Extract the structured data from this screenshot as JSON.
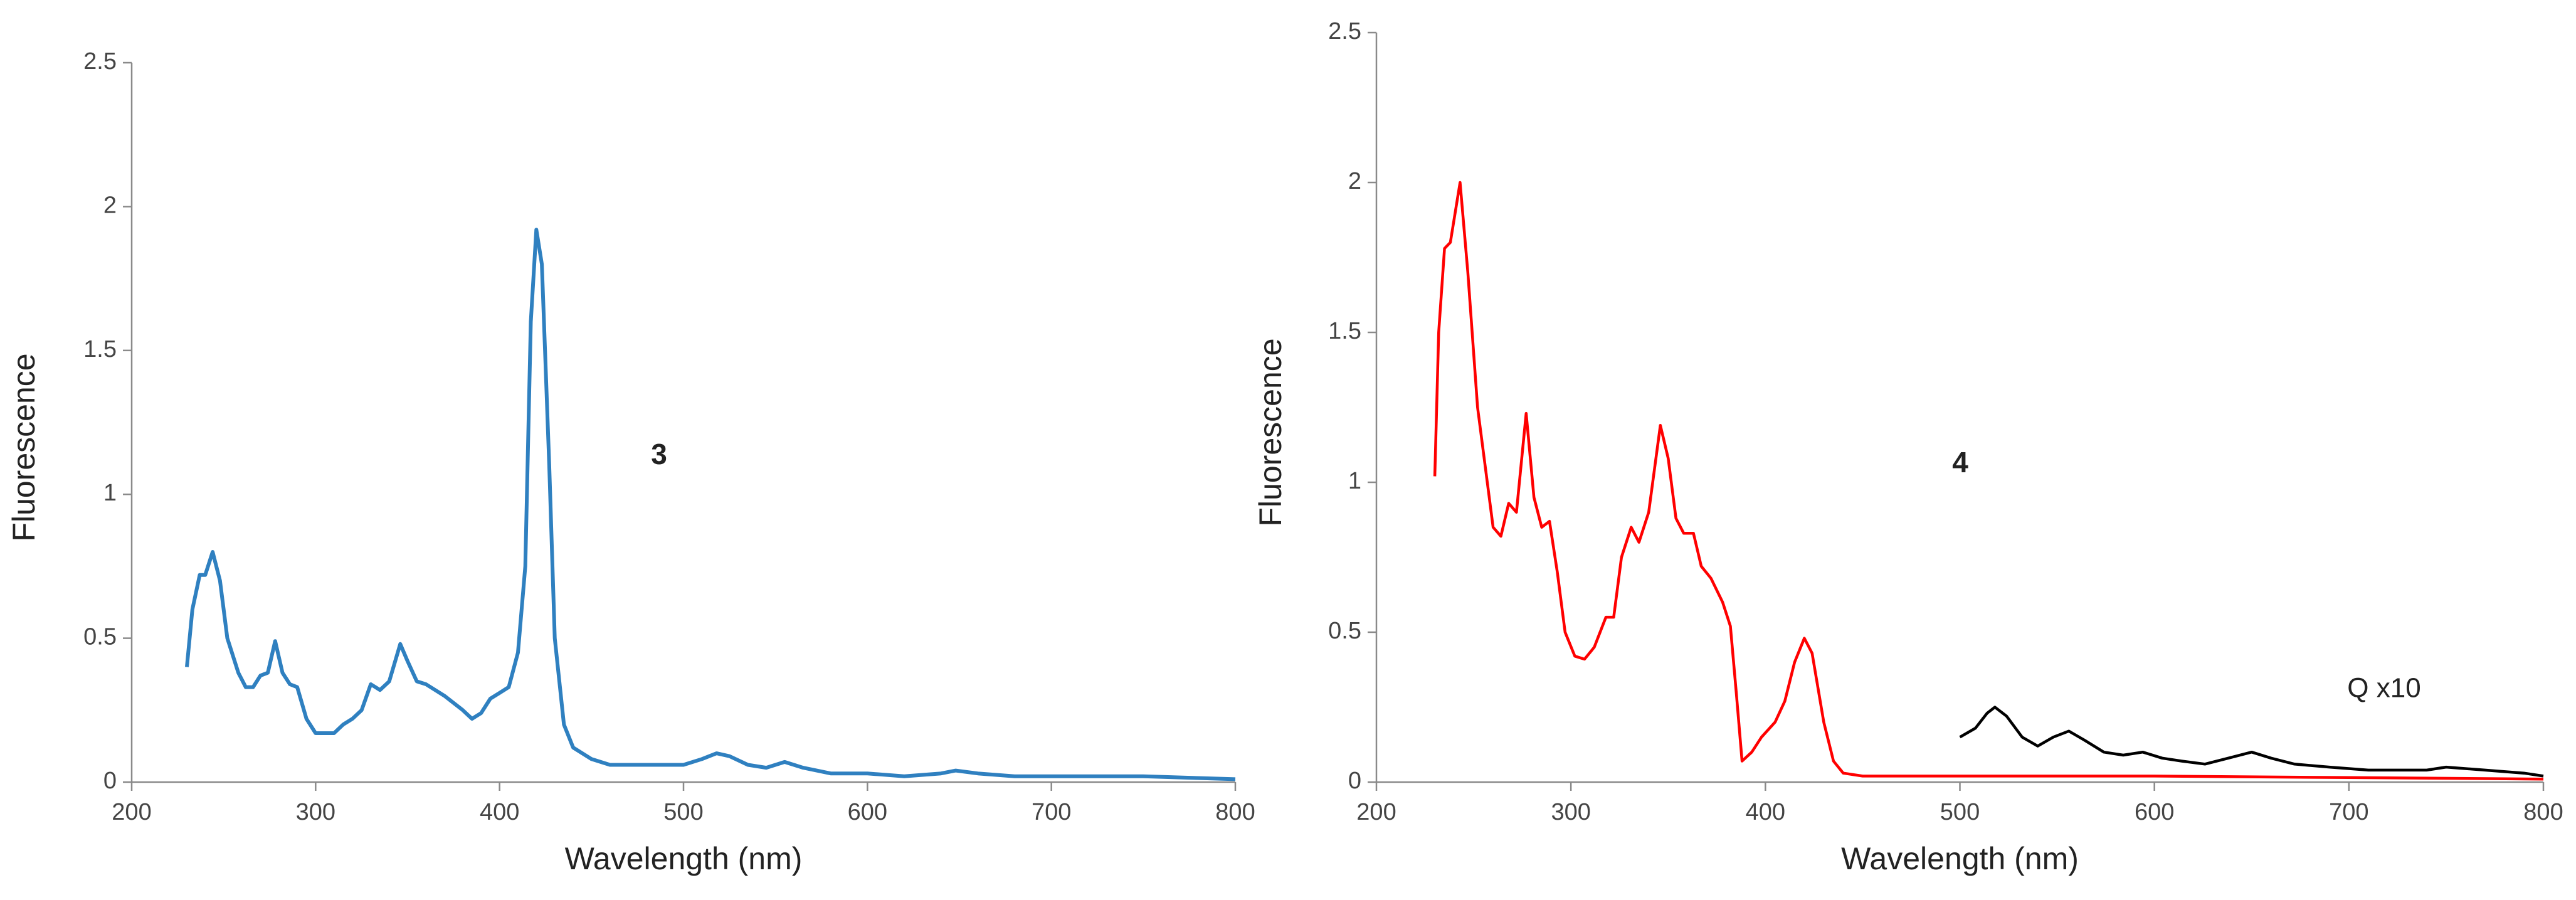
{
  "chart_data": [
    {
      "type": "line",
      "xlabel": "Wavelength (nm)",
      "ylabel": "Fluorescence",
      "xlim": [
        200,
        800
      ],
      "xticks": [
        200,
        300,
        400,
        500,
        600,
        700,
        800
      ],
      "ylim": [
        0,
        2.5
      ],
      "yticks": [
        0,
        0.5,
        1,
        1.5,
        2,
        2.5
      ],
      "grid": false,
      "annotations": [
        "3"
      ],
      "series": [
        {
          "color": "#2f80c0",
          "x": [
            230,
            233,
            237,
            240,
            244,
            248,
            252,
            258,
            262,
            266,
            270,
            274,
            278,
            282,
            286,
            290,
            295,
            300,
            305,
            310,
            315,
            320,
            325,
            330,
            335,
            340,
            346,
            350,
            355,
            360,
            370,
            380,
            385,
            390,
            395,
            400,
            405,
            410,
            414,
            417,
            420,
            423,
            427,
            430,
            435,
            440,
            450,
            460,
            480,
            500,
            510,
            518,
            525,
            535,
            545,
            555,
            565,
            580,
            600,
            620,
            640,
            648,
            660,
            680,
            700,
            750,
            800
          ],
          "values": [
            0.4,
            0.6,
            0.72,
            0.72,
            0.8,
            0.7,
            0.5,
            0.38,
            0.33,
            0.33,
            0.37,
            0.38,
            0.49,
            0.38,
            0.34,
            0.33,
            0.22,
            0.17,
            0.17,
            0.17,
            0.2,
            0.22,
            0.25,
            0.34,
            0.32,
            0.35,
            0.48,
            0.42,
            0.35,
            0.34,
            0.3,
            0.25,
            0.22,
            0.24,
            0.29,
            0.31,
            0.33,
            0.45,
            0.75,
            1.6,
            1.92,
            1.8,
            1.1,
            0.5,
            0.2,
            0.12,
            0.08,
            0.06,
            0.06,
            0.06,
            0.08,
            0.1,
            0.09,
            0.06,
            0.05,
            0.07,
            0.05,
            0.03,
            0.03,
            0.02,
            0.03,
            0.04,
            0.03,
            0.02,
            0.02,
            0.02,
            0.01
          ]
        }
      ]
    },
    {
      "type": "line",
      "xlabel": "Wavelength (nm)",
      "ylabel": "Fluorescence",
      "xlim": [
        200,
        800
      ],
      "xticks": [
        200,
        300,
        400,
        500,
        600,
        700,
        800
      ],
      "ylim": [
        0,
        2.5
      ],
      "yticks": [
        0,
        0.5,
        1,
        1.5,
        2,
        2.5
      ],
      "grid": false,
      "annotations": [
        "4",
        "Q x10"
      ],
      "series": [
        {
          "color": "#ff0000",
          "x": [
            230,
            232,
            235,
            238,
            243,
            247,
            252,
            256,
            260,
            264,
            268,
            272,
            277,
            281,
            285,
            289,
            293,
            297,
            302,
            307,
            312,
            318,
            322,
            326,
            331,
            335,
            340,
            346,
            350,
            354,
            358,
            363,
            367,
            372,
            378,
            382,
            385,
            388,
            393,
            398,
            405,
            410,
            415,
            420,
            424,
            430,
            435,
            440,
            450,
            500,
            600,
            700,
            800
          ],
          "values": [
            1.02,
            1.5,
            1.78,
            1.8,
            2.0,
            1.7,
            1.25,
            1.05,
            0.85,
            0.82,
            0.93,
            0.9,
            1.23,
            0.95,
            0.85,
            0.87,
            0.7,
            0.5,
            0.42,
            0.41,
            0.45,
            0.55,
            0.55,
            0.75,
            0.85,
            0.8,
            0.9,
            1.19,
            1.08,
            0.88,
            0.83,
            0.83,
            0.72,
            0.68,
            0.6,
            0.52,
            0.3,
            0.07,
            0.1,
            0.15,
            0.2,
            0.27,
            0.4,
            0.48,
            0.43,
            0.2,
            0.07,
            0.03,
            0.02,
            0.02,
            0.02,
            0.015,
            0.01
          ]
        },
        {
          "color": "#000000",
          "x": [
            500,
            508,
            514,
            518,
            524,
            532,
            540,
            548,
            556,
            564,
            574,
            584,
            594,
            604,
            614,
            626,
            638,
            650,
            660,
            672,
            690,
            710,
            740,
            750,
            770,
            790,
            800
          ],
          "values": [
            0.15,
            0.18,
            0.23,
            0.25,
            0.22,
            0.15,
            0.12,
            0.15,
            0.17,
            0.14,
            0.1,
            0.09,
            0.1,
            0.08,
            0.07,
            0.06,
            0.08,
            0.1,
            0.08,
            0.06,
            0.05,
            0.04,
            0.04,
            0.05,
            0.04,
            0.03,
            0.02
          ]
        }
      ]
    }
  ]
}
